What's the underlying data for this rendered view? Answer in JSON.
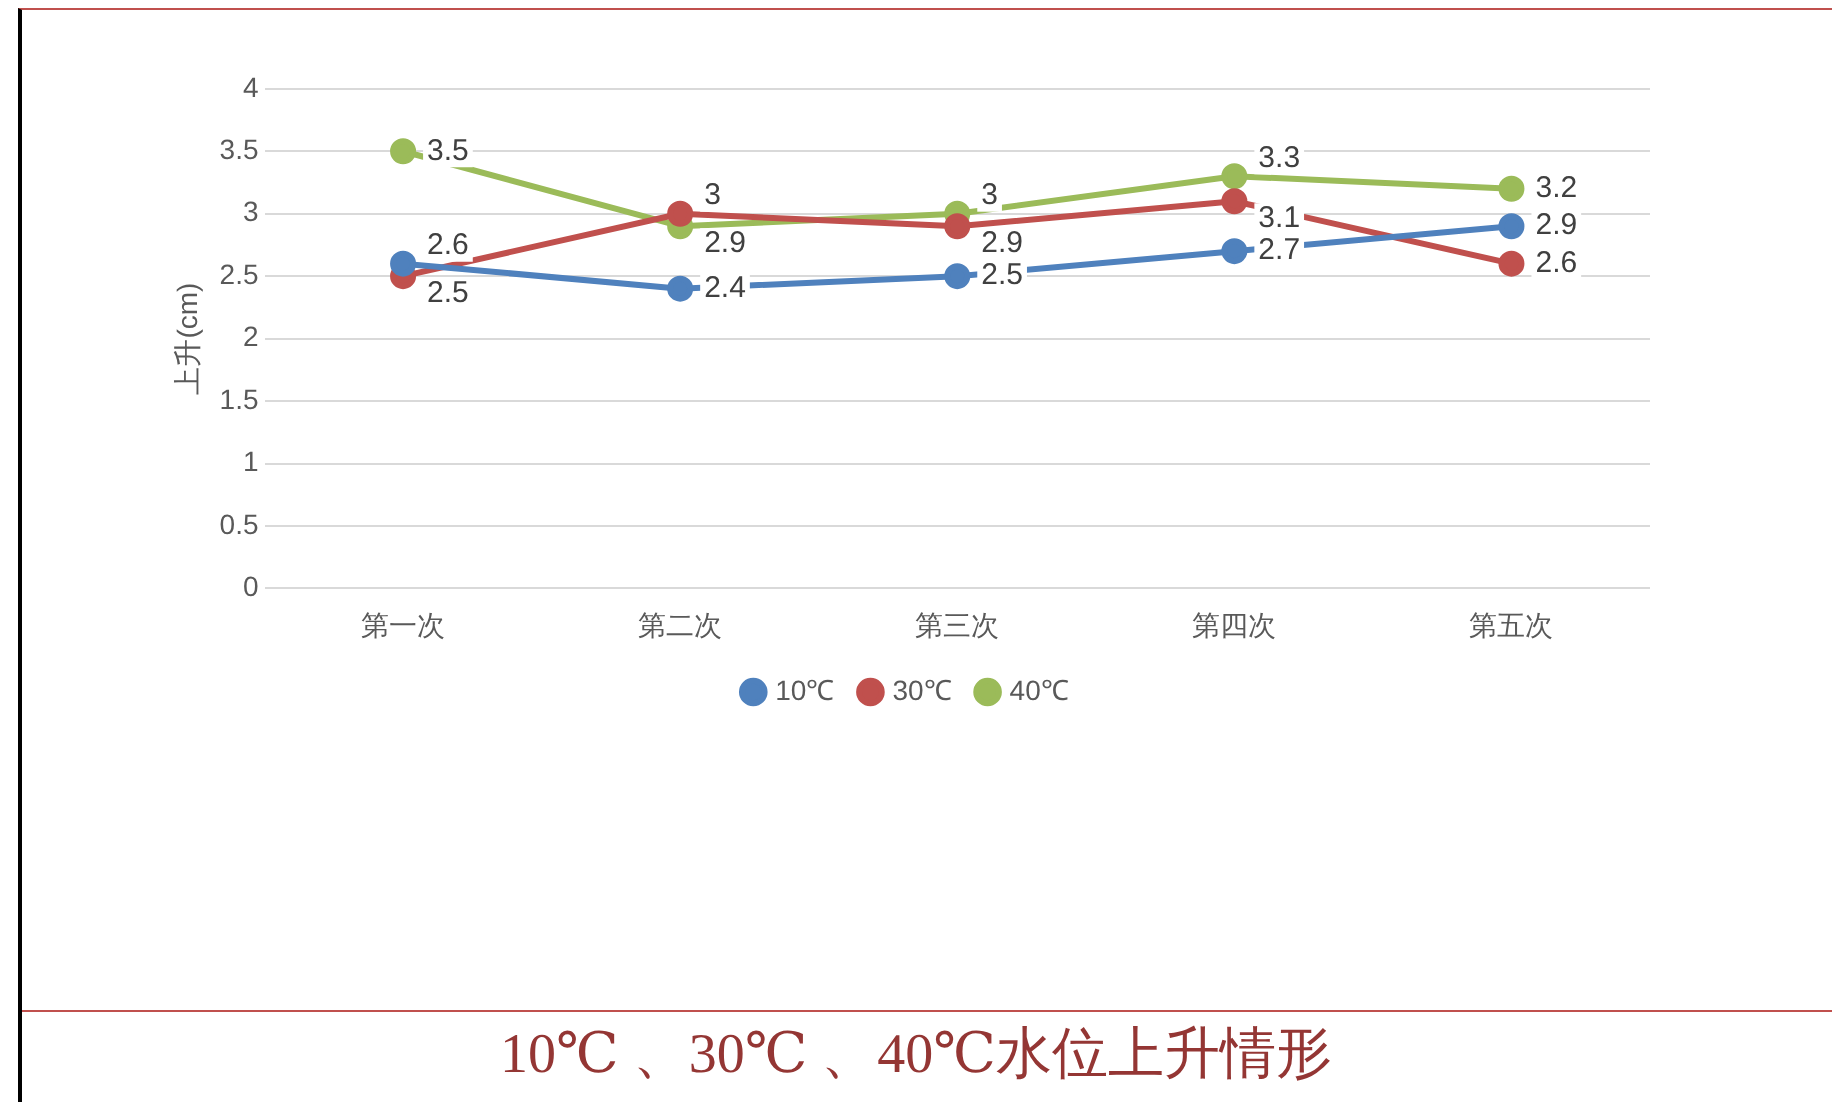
{
  "chart_data": {
    "type": "line",
    "title": "10℃ 、30℃ 、40℃水位上升情形",
    "ylabel": "上升(cm)",
    "categories": [
      "第一次",
      "第二次",
      "第三次",
      "第四次",
      "第五次"
    ],
    "series": [
      {
        "name": "10℃",
        "color": "#4f81bd",
        "values": [
          2.6,
          2.4,
          2.5,
          2.7,
          2.9
        ]
      },
      {
        "name": "30℃",
        "color": "#c0504d",
        "values": [
          2.5,
          3,
          2.9,
          3.1,
          2.6
        ]
      },
      {
        "name": "40℃",
        "color": "#9bbb59",
        "values": [
          3.5,
          2.9,
          3,
          3.3,
          3.2
        ]
      }
    ],
    "ylim": [
      0,
      4
    ],
    "yticks": [
      0,
      0.5,
      1,
      1.5,
      2,
      2.5,
      3,
      3.5,
      4
    ],
    "grid": "y",
    "legend": "bottom",
    "marker": "circle",
    "line_style": "solid",
    "data_labels": true
  }
}
